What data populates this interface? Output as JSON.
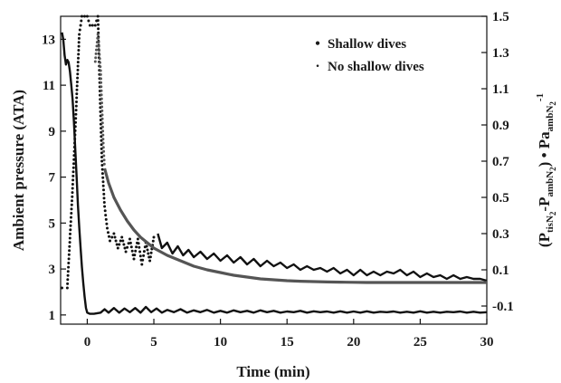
{
  "chart_data": {
    "type": "line",
    "xlabel": "Time (min)",
    "ylabel_left": "Ambient pressure (ATA)",
    "ylabel_right": {
      "parts": [
        "(P",
        "tisN",
        "2",
        "-P",
        "ambN",
        "2",
        ") • Pa",
        "ambN",
        "2",
        "-1"
      ]
    },
    "xlim": [
      -2,
      30
    ],
    "xticks": [
      0,
      5,
      10,
      15,
      20,
      25,
      30
    ],
    "ylim_left": [
      0.6,
      14.0
    ],
    "yticks_left": [
      1,
      3,
      5,
      7,
      9,
      11,
      13
    ],
    "ylim_right": [
      -0.2,
      1.5
    ],
    "yticks_right": [
      -0.1,
      0.1,
      0.3,
      0.5,
      0.7,
      0.9,
      1.1,
      1.3,
      1.5
    ],
    "yticks_right_labels": [
      "-0.1",
      "0.1",
      "0.3",
      "0.5",
      "0.7",
      "0.9",
      "1.1",
      "1.3",
      "1.5"
    ],
    "legend": {
      "position": "top-right",
      "entries": [
        {
          "marker": "•",
          "label": "Shallow dives"
        },
        {
          "marker": "·",
          "label": "No shallow dives"
        }
      ]
    },
    "series": [
      {
        "name": "Ambient pressure",
        "axis": "left",
        "style": "line",
        "color": "#111111",
        "x": [
          -1.9,
          -1.8,
          -1.7,
          -1.6,
          -1.5,
          -1.4,
          -1.3,
          -1.2,
          -1.1,
          -1.0,
          -0.9,
          -0.8,
          -0.7,
          -0.6,
          -0.5,
          -0.4,
          -0.3,
          -0.2,
          -0.1,
          0.0,
          0.2,
          0.5,
          1.0,
          1.3,
          1.6,
          2.0,
          2.4,
          2.8,
          3.2,
          3.6,
          4.0,
          4.4,
          4.8,
          5.2,
          5.6,
          6.0,
          6.5,
          7.0,
          7.5,
          8.0,
          8.5,
          9.0,
          9.5,
          10.0,
          10.5,
          11.0,
          11.5,
          12.0,
          12.5,
          13.0,
          13.5,
          14.0,
          14.5,
          15.0,
          15.5,
          16.0,
          16.5,
          17.0,
          17.5,
          18.0,
          18.5,
          19.0,
          19.5,
          20.0,
          20.5,
          21.0,
          21.5,
          22.0,
          22.5,
          23.0,
          23.5,
          24.0,
          24.5,
          25.0,
          25.5,
          26.0,
          26.5,
          27.0,
          27.5,
          28.0,
          28.5,
          29.0,
          29.5,
          30.0
        ],
        "y": [
          13.3,
          13.0,
          12.3,
          11.9,
          12.1,
          12.0,
          11.6,
          11.0,
          10.4,
          9.4,
          8.2,
          7.0,
          5.8,
          4.8,
          3.9,
          3.1,
          2.4,
          1.8,
          1.3,
          1.1,
          1.05,
          1.05,
          1.1,
          1.25,
          1.1,
          1.3,
          1.1,
          1.28,
          1.12,
          1.3,
          1.1,
          1.35,
          1.12,
          1.28,
          1.1,
          1.22,
          1.12,
          1.25,
          1.1,
          1.2,
          1.12,
          1.22,
          1.1,
          1.18,
          1.1,
          1.2,
          1.12,
          1.18,
          1.1,
          1.2,
          1.12,
          1.18,
          1.1,
          1.15,
          1.12,
          1.18,
          1.1,
          1.16,
          1.12,
          1.15,
          1.1,
          1.16,
          1.1,
          1.15,
          1.1,
          1.16,
          1.1,
          1.14,
          1.12,
          1.15,
          1.1,
          1.14,
          1.1,
          1.16,
          1.1,
          1.14,
          1.1,
          1.14,
          1.12,
          1.15,
          1.1,
          1.14,
          1.1,
          1.12
        ]
      },
      {
        "name": "Shallow dives",
        "axis": "right",
        "style": "dotted",
        "color": "#111111",
        "x": [
          -1.9,
          -1.5,
          -1.1,
          -0.8,
          -0.6,
          -0.4,
          -0.2,
          0.0,
          0.2,
          0.4,
          0.6,
          0.8,
          1.0,
          1.1,
          1.3,
          1.5,
          1.7,
          2.0,
          2.3,
          2.6,
          2.9,
          3.2,
          3.5,
          3.8,
          4.1,
          4.4,
          4.7,
          5.0,
          5.3
        ],
        "y": [
          0.0,
          0.0,
          0.55,
          1.05,
          1.4,
          1.5,
          1.5,
          1.5,
          1.45,
          1.45,
          1.45,
          1.5,
          0.95,
          0.7,
          0.45,
          0.33,
          0.26,
          0.3,
          0.22,
          0.28,
          0.2,
          0.27,
          0.16,
          0.27,
          0.13,
          0.25,
          0.15,
          0.28,
          0.3
        ]
      },
      {
        "name": "Shallow dives",
        "axis": "right",
        "style": "line",
        "color": "#111111",
        "x": [
          5.3,
          5.6,
          6.0,
          6.4,
          6.8,
          7.2,
          7.6,
          8.0,
          8.5,
          9.0,
          9.5,
          10.0,
          10.5,
          11.0,
          11.5,
          12.0,
          12.5,
          13.0,
          13.5,
          14.0,
          14.5,
          15.0,
          15.5,
          16.0,
          16.5,
          17.0,
          17.5,
          18.0,
          18.5,
          19.0,
          19.5,
          20.0,
          20.5,
          21.0,
          21.5,
          22.0,
          22.5,
          23.0,
          23.5,
          24.0,
          24.5,
          25.0,
          25.5,
          26.0,
          26.5,
          27.0,
          27.5,
          28.0,
          28.5,
          29.0,
          29.5,
          30.0
        ],
        "y": [
          0.3,
          0.22,
          0.25,
          0.19,
          0.23,
          0.18,
          0.21,
          0.17,
          0.2,
          0.16,
          0.19,
          0.15,
          0.18,
          0.14,
          0.17,
          0.13,
          0.16,
          0.12,
          0.15,
          0.12,
          0.14,
          0.11,
          0.13,
          0.1,
          0.12,
          0.1,
          0.11,
          0.09,
          0.11,
          0.08,
          0.1,
          0.07,
          0.1,
          0.07,
          0.09,
          0.07,
          0.09,
          0.08,
          0.1,
          0.07,
          0.09,
          0.06,
          0.08,
          0.06,
          0.07,
          0.05,
          0.07,
          0.05,
          0.06,
          0.05,
          0.05,
          0.04
        ]
      },
      {
        "name": "No shallow dives",
        "axis": "right",
        "style": "line",
        "color": "#555555",
        "x": [
          1.3,
          1.6,
          2.0,
          2.5,
          3.0,
          3.5,
          4.0,
          4.5,
          5.0,
          5.5,
          6.0,
          7.0,
          8.0,
          9.0,
          10.0,
          11.0,
          12.0,
          13.0,
          14.0,
          15.0,
          16.0,
          17.0,
          18.0,
          19.0,
          20.0,
          21.0,
          22.0,
          23.0,
          24.0,
          25.0,
          26.0,
          27.0,
          28.0,
          29.0,
          30.0
        ],
        "y": [
          0.66,
          0.58,
          0.5,
          0.43,
          0.37,
          0.32,
          0.28,
          0.25,
          0.22,
          0.2,
          0.18,
          0.15,
          0.12,
          0.1,
          0.085,
          0.07,
          0.06,
          0.05,
          0.045,
          0.04,
          0.037,
          0.035,
          0.033,
          0.032,
          0.031,
          0.03,
          0.03,
          0.03,
          0.03,
          0.03,
          0.03,
          0.03,
          0.03,
          0.03,
          0.03
        ]
      },
      {
        "name": "No shallow dives",
        "axis": "right",
        "style": "dotted",
        "color": "#555555",
        "x": [
          0.6,
          0.8,
          1.0,
          1.1,
          1.2,
          1.3
        ],
        "y": [
          1.25,
          1.4,
          1.2,
          1.0,
          0.8,
          0.66
        ]
      }
    ]
  }
}
